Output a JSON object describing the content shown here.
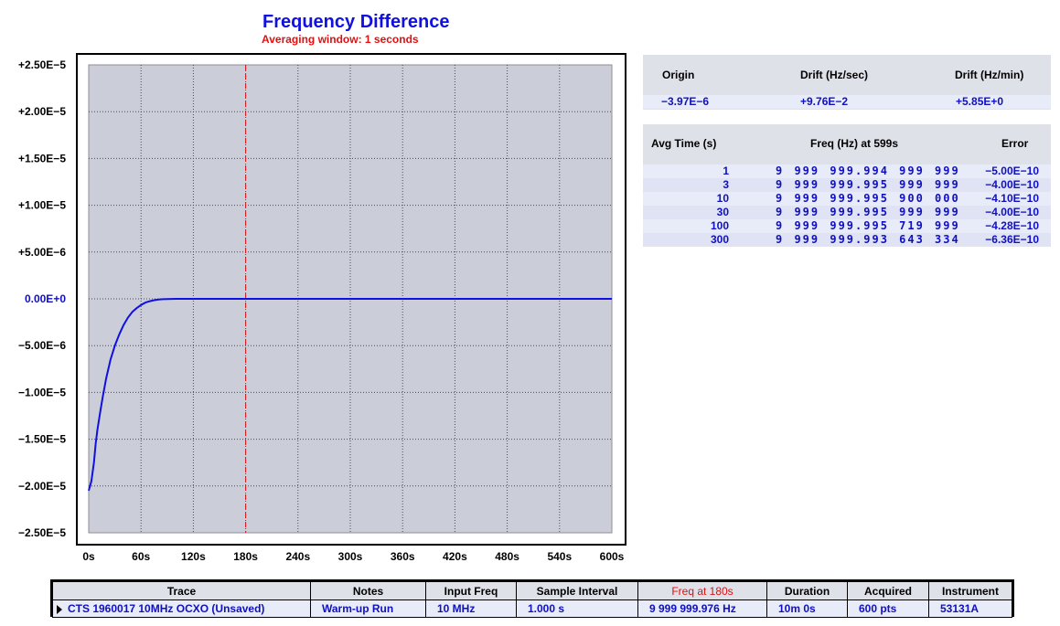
{
  "chart_data": {
    "type": "line",
    "title": "Frequency Difference",
    "subtitle": "Averaging window: 1 seconds",
    "x_ticks": [
      "0s",
      "60s",
      "120s",
      "180s",
      "240s",
      "300s",
      "360s",
      "420s",
      "480s",
      "540s",
      "600s"
    ],
    "y_ticks": [
      "+2.50E−5",
      "+2.00E−5",
      "+1.50E−5",
      "+1.00E−5",
      "+5.00E−6",
      "0.00E+0",
      "−5.00E−6",
      "−1.00E−5",
      "−1.50E−5",
      "−2.00E−5",
      "−2.50E−5"
    ],
    "xlim": [
      0,
      600
    ],
    "ylim": [
      -2.5e-05,
      2.5e-05
    ],
    "grid": true,
    "marker_x": 180,
    "series": [
      {
        "color": "#1010e0",
        "x": [
          0,
          3,
          6,
          8,
          10,
          13,
          16,
          20,
          25,
          30,
          35,
          40,
          45,
          50,
          55,
          60,
          65,
          70,
          75,
          80,
          85,
          90,
          95,
          100,
          110,
          150,
          200,
          300,
          400,
          500,
          600
        ],
        "y": [
          -2.05e-05,
          -1.95e-05,
          -1.75e-05,
          -1.55e-05,
          -1.4e-05,
          -1.22e-05,
          -1.05e-05,
          -8.5e-06,
          -6.5e-06,
          -5e-06,
          -3.8e-06,
          -2.8e-06,
          -2e-06,
          -1.4e-06,
          -1e-06,
          -6.5e-07,
          -4e-07,
          -2.5e-07,
          -1.5e-07,
          -8e-08,
          -4e-08,
          -2e-08,
          -1e-08,
          0,
          0,
          0,
          0,
          0,
          0,
          0,
          0
        ]
      }
    ]
  },
  "drift": {
    "headers": [
      "Origin",
      "Drift (Hz/sec)",
      "Drift (Hz/min)"
    ],
    "values": [
      "−3.97E−6",
      "+9.76E−2",
      "+5.85E+0"
    ]
  },
  "avg": {
    "headers": [
      "Avg Time (s)",
      "Freq (Hz) at 599s",
      "Error"
    ],
    "rows": [
      {
        "t": "1",
        "freq": "9 999 999.994 999 999",
        "err": "−5.00E−10"
      },
      {
        "t": "3",
        "freq": "9 999 999.995 999 999",
        "err": "−4.00E−10"
      },
      {
        "t": "10",
        "freq": "9 999 999.995 900 000",
        "err": "−4.10E−10"
      },
      {
        "t": "30",
        "freq": "9 999 999.995 999 999",
        "err": "−4.00E−10"
      },
      {
        "t": "100",
        "freq": "9 999 999.995 719 999",
        "err": "−4.28E−10"
      },
      {
        "t": "300",
        "freq": "9 999 999.993 643 334",
        "err": "−6.36E−10"
      }
    ]
  },
  "trace_table": {
    "headers": [
      "Trace",
      "Notes",
      "Input Freq",
      "Sample Interval",
      "Freq at 180s",
      "Duration",
      "Acquired",
      "Instrument"
    ],
    "row": [
      "CTS 1960017 10MHz OCXO (Unsaved)",
      "Warm-up Run",
      "10 MHz",
      "1.000 s",
      "9 999 999.976 Hz",
      "10m 0s",
      "600 pts",
      "53131A"
    ]
  }
}
